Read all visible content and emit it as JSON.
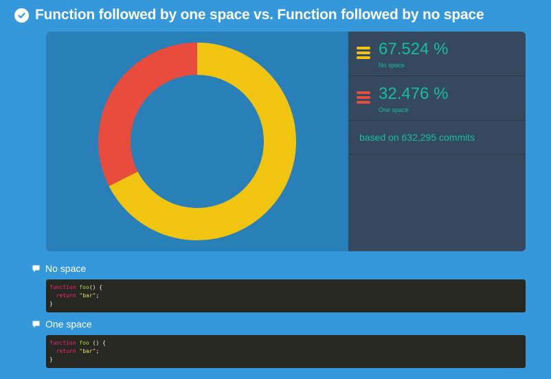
{
  "title": "Function followed by one space vs. Function followed by no space",
  "colors": {
    "no_space": "#f1c40f",
    "one_space": "#e74c3c",
    "accent": "#1abc9c",
    "background": "#3498db"
  },
  "stats": [
    {
      "percent": "67.524 %",
      "label": "No space",
      "color": "#f1c40f",
      "icon": "menu-lines-icon"
    },
    {
      "percent": "32.476 %",
      "label": "One space",
      "color": "#e74c3c",
      "icon": "menu-lines-icon"
    }
  ],
  "commits_text": "based on 632,295 commits",
  "chart_data": {
    "type": "pie",
    "donut": true,
    "categories": [
      "No space",
      "One space"
    ],
    "values": [
      67.524,
      32.476
    ],
    "colors": [
      "#f1c40f",
      "#e74c3c"
    ],
    "title": "Function followed by one space vs. Function followed by no space",
    "legend": "right"
  },
  "examples": [
    {
      "heading": "No space",
      "code": {
        "kw1": "function",
        "fn": "foo",
        "sig": "() {",
        "kw2": "return",
        "str": "\"bar\"",
        "end": ";",
        "close": "}"
      }
    },
    {
      "heading": "One space",
      "code": {
        "kw1": "function",
        "fn": "foo",
        "sig": " () {",
        "kw2": "return",
        "str": "\"bar\"",
        "end": ";",
        "close": "}"
      }
    }
  ]
}
